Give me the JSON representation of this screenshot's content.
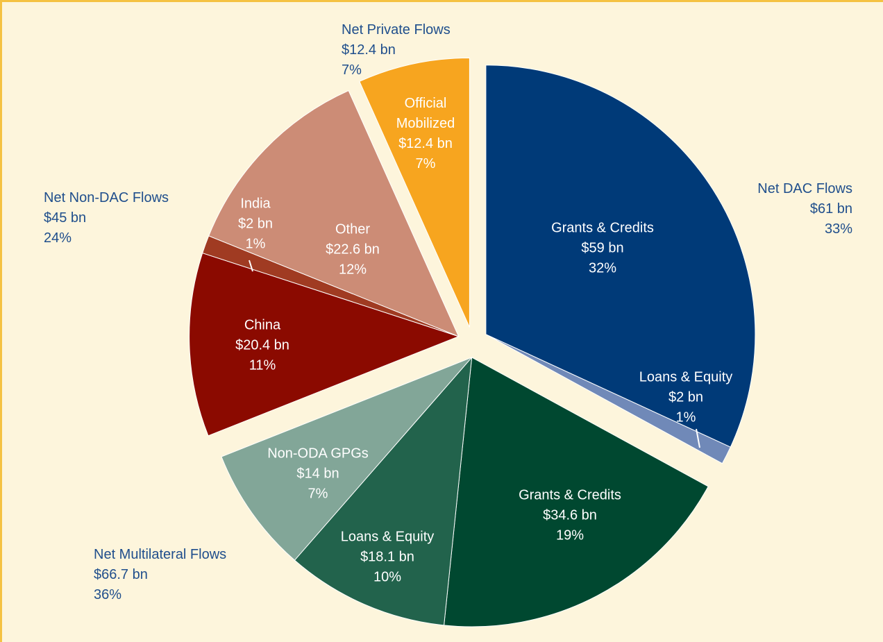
{
  "chart_data": {
    "type": "pie",
    "groups": [
      {
        "name": "Net DAC Flows",
        "value": 61,
        "value_label": "$61 bn",
        "percent": 33,
        "percent_label": "33%",
        "slices": [
          {
            "name": "Grants & Credits",
            "value": 59,
            "value_label": "$59 bn",
            "percent": 32,
            "percent_label": "32%",
            "color": "#003a78"
          },
          {
            "name": "Loans & Equity",
            "value": 2,
            "value_label": "$2 bn",
            "percent": 1,
            "percent_label": "1%",
            "color": "#7089b8"
          }
        ]
      },
      {
        "name": "Net Multilateral Flows",
        "value": 66.7,
        "value_label": "$66.7 bn",
        "percent": 36,
        "percent_label": "36%",
        "slices": [
          {
            "name": "Grants & Credits",
            "value": 34.6,
            "value_label": "$34.6 bn",
            "percent": 19,
            "percent_label": "19%",
            "color": "#004830"
          },
          {
            "name": "Loans & Equity",
            "value": 18.1,
            "value_label": "$18.1 bn",
            "percent": 10,
            "percent_label": "10%",
            "color": "#22634c"
          },
          {
            "name": "Non-ODA GPGs",
            "value": 14,
            "value_label": "$14 bn",
            "percent": 7,
            "percent_label": "7%",
            "color": "#82a698"
          }
        ]
      },
      {
        "name": "Net Non-DAC Flows",
        "value": 45,
        "value_label": "$45 bn",
        "percent": 24,
        "percent_label": "24%",
        "slices": [
          {
            "name": "China",
            "value": 20.4,
            "value_label": "$20.4 bn",
            "percent": 11,
            "percent_label": "11%",
            "color": "#8b0a00"
          },
          {
            "name": "India",
            "value": 2,
            "value_label": "$2 bn",
            "percent": 1,
            "percent_label": "1%",
            "color": "#a03b22"
          },
          {
            "name": "Other",
            "value": 22.6,
            "value_label": "$22.6 bn",
            "percent": 12,
            "percent_label": "12%",
            "color": "#cc8c76"
          }
        ]
      },
      {
        "name": "Net Private Flows",
        "value": 12.4,
        "value_label": "$12.4 bn",
        "percent": 7,
        "percent_label": "7%",
        "slices": [
          {
            "name": "Official Mobilized",
            "value": 12.4,
            "value_label": "$12.4 bn",
            "percent": 7,
            "percent_label": "7%",
            "color": "#f7a51f"
          }
        ]
      }
    ]
  }
}
